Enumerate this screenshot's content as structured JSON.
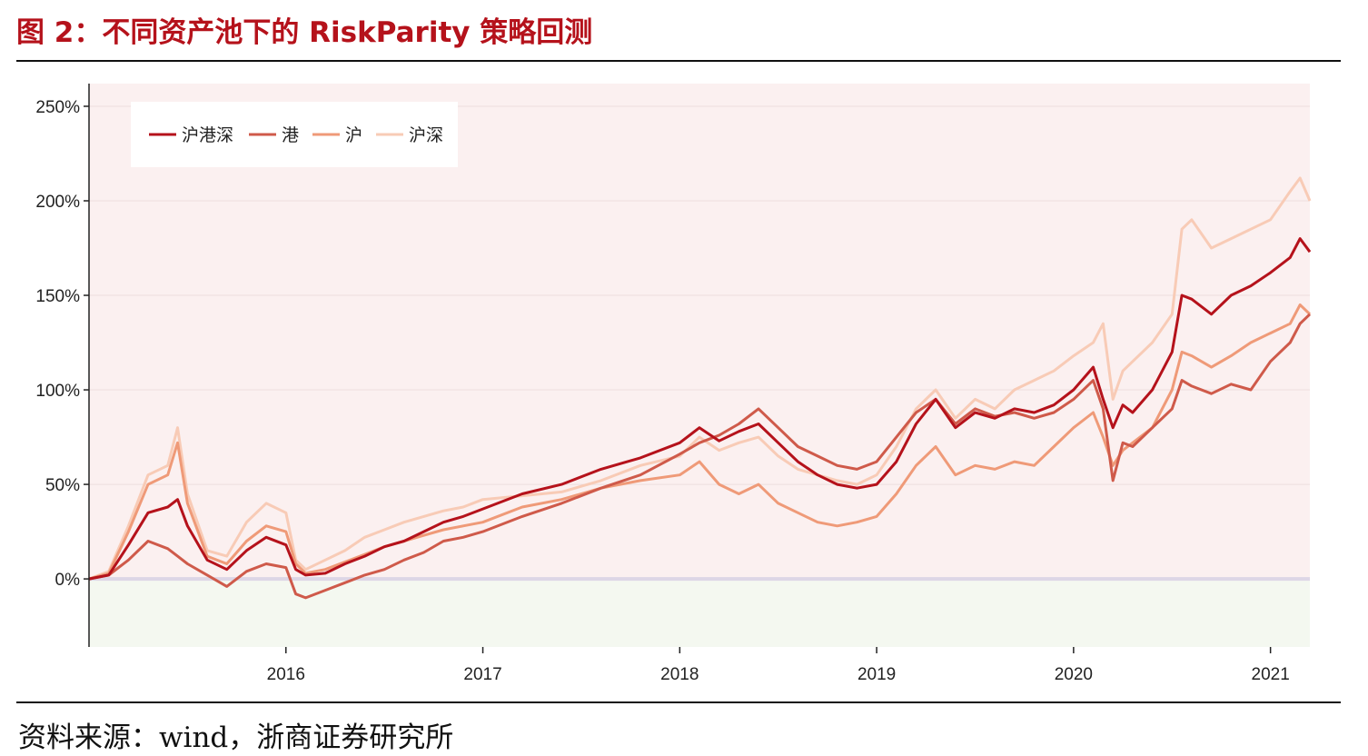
{
  "header": {
    "title": "图 2：不同资产池下的 RiskParity 策略回测"
  },
  "footer": {
    "source": "资料来源：wind，浙商证券研究所"
  },
  "chart_data": {
    "type": "line",
    "title": "",
    "xlabel": "",
    "ylabel": "",
    "x_ticks": [
      "2016",
      "2017",
      "2018",
      "2019",
      "2020",
      "2021"
    ],
    "y_ticks": [
      "250%",
      "200%",
      "150%",
      "100%",
      "50%",
      "0%"
    ],
    "y_tick_values": [
      250,
      200,
      150,
      100,
      50,
      0
    ],
    "x_range": [
      2015.0,
      2021.2
    ],
    "ylim": [
      -36,
      262
    ],
    "y_unit": "%",
    "grid": "horizontal",
    "legend_position": "top-left",
    "background": {
      "positive_region": "#fbf0f0",
      "negative_region": "#f4f8f0",
      "zero_line": "#ddd6e6"
    },
    "x": [
      2015.0,
      2015.1,
      2015.2,
      2015.3,
      2015.4,
      2015.45,
      2015.5,
      2015.6,
      2015.7,
      2015.8,
      2015.9,
      2016.0,
      2016.05,
      2016.1,
      2016.2,
      2016.3,
      2016.4,
      2016.5,
      2016.6,
      2016.7,
      2016.8,
      2016.9,
      2017.0,
      2017.2,
      2017.4,
      2017.6,
      2017.8,
      2018.0,
      2018.1,
      2018.2,
      2018.3,
      2018.4,
      2018.5,
      2018.6,
      2018.7,
      2018.8,
      2018.9,
      2019.0,
      2019.1,
      2019.2,
      2019.3,
      2019.4,
      2019.5,
      2019.6,
      2019.7,
      2019.8,
      2019.9,
      2020.0,
      2020.1,
      2020.15,
      2020.2,
      2020.25,
      2020.3,
      2020.4,
      2020.5,
      2020.55,
      2020.6,
      2020.7,
      2020.8,
      2020.9,
      2021.0,
      2021.1,
      2021.15,
      2021.2
    ],
    "series": [
      {
        "name": "沪港深",
        "color": "#b5121b",
        "values": [
          0,
          2,
          18,
          35,
          38,
          42,
          28,
          10,
          5,
          15,
          22,
          18,
          5,
          2,
          3,
          8,
          12,
          17,
          20,
          25,
          30,
          33,
          37,
          45,
          50,
          58,
          64,
          72,
          80,
          73,
          78,
          82,
          72,
          62,
          55,
          50,
          48,
          50,
          62,
          82,
          95,
          80,
          88,
          85,
          90,
          88,
          92,
          100,
          112,
          95,
          80,
          92,
          88,
          100,
          120,
          150,
          148,
          140,
          150,
          155,
          162,
          170,
          180,
          173
        ]
      },
      {
        "name": "港",
        "color": "#cf5a4a",
        "values": [
          0,
          2,
          10,
          20,
          16,
          12,
          8,
          2,
          -4,
          4,
          8,
          6,
          -8,
          -10,
          -6,
          -2,
          2,
          5,
          10,
          14,
          20,
          22,
          25,
          33,
          40,
          48,
          55,
          66,
          72,
          76,
          82,
          90,
          80,
          70,
          65,
          60,
          58,
          62,
          75,
          88,
          95,
          82,
          90,
          86,
          88,
          85,
          88,
          95,
          105,
          90,
          52,
          72,
          70,
          80,
          90,
          105,
          102,
          98,
          103,
          100,
          115,
          125,
          135,
          140
        ]
      },
      {
        "name": "沪",
        "color": "#ef9a78",
        "values": [
          0,
          3,
          25,
          50,
          55,
          72,
          40,
          12,
          8,
          20,
          28,
          25,
          8,
          3,
          5,
          9,
          13,
          17,
          20,
          23,
          26,
          28,
          30,
          38,
          42,
          48,
          52,
          55,
          62,
          50,
          45,
          50,
          40,
          35,
          30,
          28,
          30,
          33,
          45,
          60,
          70,
          55,
          60,
          58,
          62,
          60,
          70,
          80,
          88,
          75,
          60,
          68,
          72,
          80,
          100,
          120,
          118,
          112,
          118,
          125,
          130,
          135,
          145,
          140
        ]
      },
      {
        "name": "沪深",
        "color": "#f8cbb6",
        "values": [
          0,
          4,
          28,
          55,
          60,
          80,
          45,
          15,
          12,
          30,
          40,
          35,
          10,
          5,
          10,
          15,
          22,
          26,
          30,
          33,
          36,
          38,
          42,
          44,
          46,
          52,
          60,
          65,
          75,
          68,
          72,
          75,
          65,
          58,
          55,
          52,
          50,
          55,
          70,
          90,
          100,
          85,
          95,
          90,
          100,
          105,
          110,
          118,
          125,
          135,
          95,
          110,
          115,
          125,
          140,
          185,
          190,
          175,
          180,
          185,
          190,
          205,
          212,
          200
        ]
      }
    ]
  }
}
